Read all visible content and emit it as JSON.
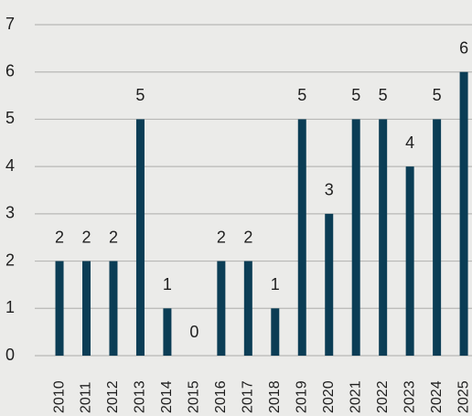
{
  "chart_data": {
    "type": "bar",
    "categories": [
      "2010",
      "2011",
      "2012",
      "2013",
      "2014",
      "2015",
      "2016",
      "2017",
      "2018",
      "2019",
      "2020",
      "2021",
      "2022",
      "2023",
      "2024",
      "2025"
    ],
    "values": [
      2,
      2,
      2,
      5,
      1,
      0,
      2,
      2,
      1,
      5,
      3,
      5,
      5,
      4,
      5,
      6
    ],
    "color": "#0b3d55",
    "ylim": [
      0,
      7
    ],
    "yticks": [
      0,
      1,
      2,
      3,
      4,
      5,
      6,
      7
    ],
    "grid": true
  }
}
